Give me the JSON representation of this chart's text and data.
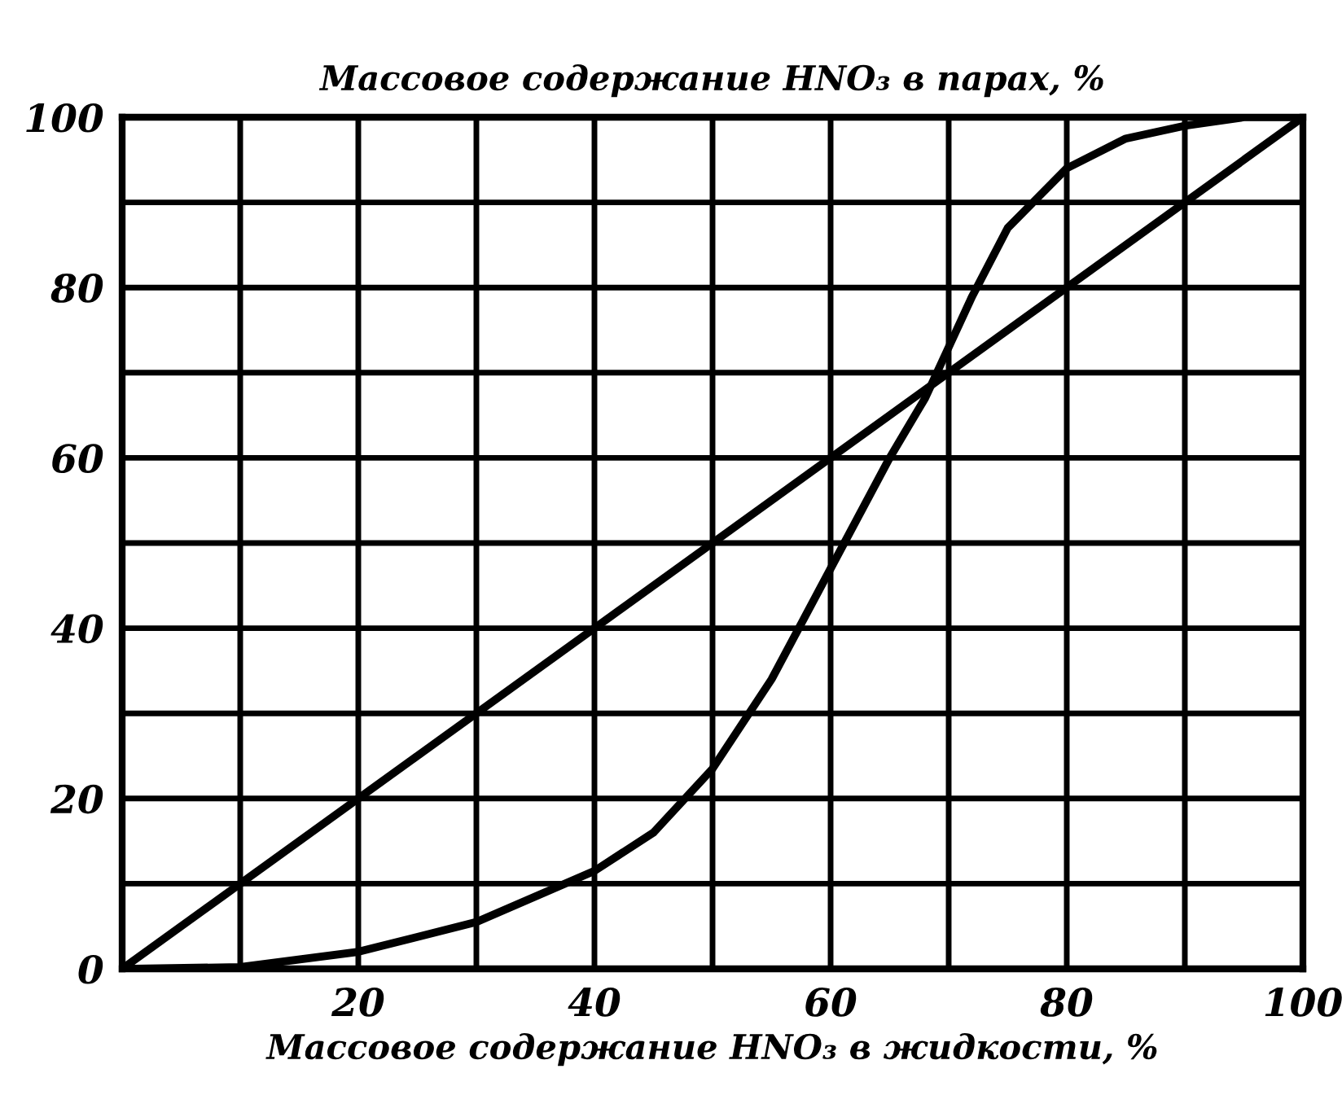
{
  "chart_data": {
    "type": "line",
    "ylabel": "Массовое содержание HNO₃ в парах, %",
    "xlabel": "Массовое содержание HNO₃ в жидкости, %",
    "series": [
      {
        "color": "#000000",
        "x": [
          0,
          10,
          20,
          30,
          40,
          45,
          50,
          55,
          60,
          65,
          68,
          70,
          72,
          75,
          80,
          85,
          90,
          95,
          100
        ],
        "values": [
          0,
          0.2,
          2,
          5.5,
          11.5,
          16,
          23.5,
          34,
          47,
          60,
          67,
          73,
          79,
          87,
          94,
          97.5,
          99,
          100,
          100
        ]
      },
      {
        "color": "#000000",
        "x": [
          0,
          100
        ],
        "values": [
          0,
          100
        ]
      }
    ],
    "xlim": [
      0,
      100
    ],
    "ylim": [
      0,
      100
    ],
    "xticks": [
      {
        "value": 0,
        "label": null
      },
      {
        "value": 10,
        "label": null
      },
      20,
      {
        "value": 30,
        "label": null
      },
      40,
      {
        "value": 50,
        "label": null
      },
      60,
      {
        "value": 70,
        "label": null
      },
      80,
      {
        "value": 90,
        "label": null
      },
      100
    ],
    "yticks": [
      0,
      {
        "value": 10,
        "label": null
      },
      20,
      {
        "value": 30,
        "label": null
      },
      40,
      {
        "value": 50,
        "label": null
      },
      60,
      {
        "value": 70,
        "label": null
      },
      80,
      {
        "value": 90,
        "label": null
      },
      100
    ],
    "grid": true,
    "marker": "none",
    "line_style": "solid"
  }
}
